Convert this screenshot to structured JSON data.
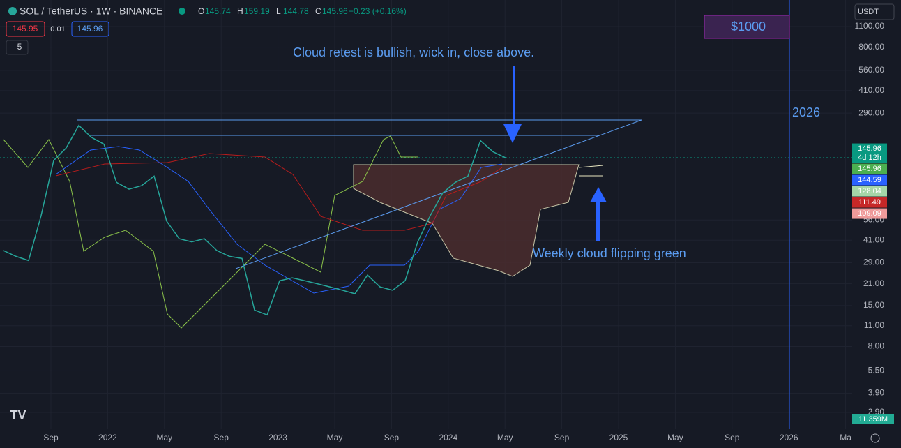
{
  "header": {
    "symbol": "SOL / TetherUS · 1W · BINANCE",
    "ohlc": [
      {
        "key": "O",
        "value": "145.74"
      },
      {
        "key": "H",
        "value": "159.19"
      },
      {
        "key": "L",
        "value": "144.78"
      },
      {
        "key": "C",
        "value": "145.96"
      }
    ],
    "change": "+0.23 (+0.16%)",
    "sell": "145.95",
    "spread": "0.01",
    "buy": "145.96",
    "indicator_count": "5"
  },
  "currency": "USDT",
  "price_axis": {
    "scale": "log",
    "range": [
      2.24,
      1654
    ],
    "ticks": [
      {
        "value": 1100,
        "label": "1100.00"
      },
      {
        "value": 800,
        "label": "800.00"
      },
      {
        "value": 560,
        "label": "560.00"
      },
      {
        "value": 410,
        "label": "410.00"
      },
      {
        "value": 290,
        "label": "290.00"
      },
      {
        "value": 56,
        "label": "56.00"
      },
      {
        "value": 41,
        "label": "41.00"
      },
      {
        "value": 29,
        "label": "29.00"
      },
      {
        "value": 21,
        "label": "21.00"
      },
      {
        "value": 15,
        "label": "15.00"
      },
      {
        "value": 11,
        "label": "11.00"
      },
      {
        "value": 8,
        "label": "8.00"
      },
      {
        "value": 5.5,
        "label": "5.50"
      },
      {
        "value": 3.9,
        "label": "3.90"
      },
      {
        "value": 2.9,
        "label": "2.90"
      }
    ]
  },
  "time_axis": [
    "Sep",
    "2022",
    "May",
    "Sep",
    "2023",
    "May",
    "Sep",
    "2024",
    "May",
    "Sep",
    "2025",
    "May",
    "Sep",
    "2026",
    "Ma"
  ],
  "price_series": {
    "color": "#26a69a",
    "values": [
      35,
      32,
      30,
      60,
      140,
      170,
      240,
      200,
      180,
      100,
      90,
      95,
      110,
      55,
      42,
      40,
      42,
      35,
      32,
      31,
      14,
      13,
      22,
      23,
      22,
      21,
      20,
      19,
      18,
      24,
      20,
      19,
      22,
      40,
      60,
      85,
      100,
      110,
      190,
      160,
      146
    ]
  },
  "price_labels": [
    {
      "value": 145.96,
      "label": "145.96",
      "sub": "4d 12h",
      "color": "#089981"
    },
    {
      "value": 145.96,
      "label": "145.96",
      "color": "#4caf50"
    },
    {
      "value": 144.59,
      "label": "144.59",
      "color": "#2962ff"
    },
    {
      "value": 128.04,
      "label": "128.04",
      "color": "#a5d6a7"
    },
    {
      "value": 111.49,
      "label": "111.49",
      "color": "#c62828"
    },
    {
      "value": 109.09,
      "label": "109.09",
      "color": "#ef9a9a"
    }
  ],
  "volume_label": "11.359M",
  "target": "$1000",
  "year_marker": "2026",
  "annotations": [
    "Cloud retest is bullish, wick in, close above.",
    "Weekly cloud flipping green"
  ]
}
